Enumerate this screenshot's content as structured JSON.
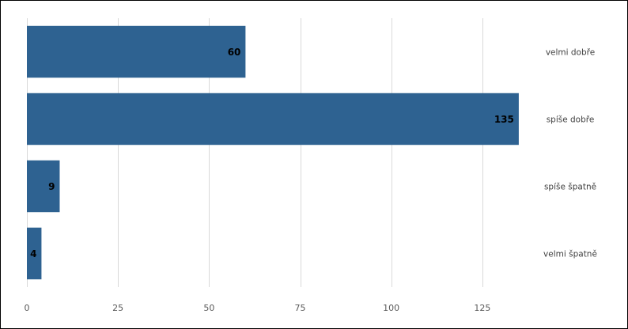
{
  "chart_data": {
    "type": "bar",
    "orientation": "horizontal",
    "categories": [
      "velmi dobře",
      "spíše dobře",
      "spíše špatně",
      "velmi špatně"
    ],
    "values": [
      60,
      135,
      9,
      4
    ],
    "data_labels": [
      "60",
      "135",
      "9",
      "4"
    ],
    "xlim": [
      0,
      150
    ],
    "x_ticks": [
      0,
      25,
      50,
      75,
      100,
      125
    ],
    "x_tick_labels": [
      "0",
      "25",
      "50",
      "75",
      "100",
      "125"
    ],
    "grid": true,
    "legend": "none",
    "bar_color": "#2e6291"
  }
}
